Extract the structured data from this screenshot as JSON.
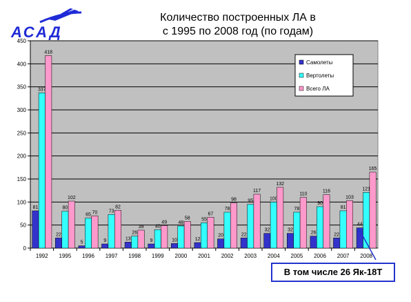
{
  "header": {
    "logo_text": "АСАД",
    "title_line1": "Количество построенных ЛА в",
    "title_line2": "с 1995 по 2008 год (по годам)"
  },
  "callout": {
    "text": "В том числе 26 Як-18Т"
  },
  "colors": {
    "plot_bg": "#c0c0c0",
    "samolety": "#3333cc",
    "vertolety": "#33ffff",
    "vsego": "#ff99cc",
    "logo_blue": "#1f2bd6",
    "callout_border": "#2233cc"
  },
  "chart_data": {
    "type": "bar",
    "title": "Количество построенных ЛА в с 1995 по 2008 год (по годам)",
    "categories": [
      "1992",
      "1995",
      "1996",
      "1997",
      "1998",
      "1999",
      "2000",
      "2001",
      "2002",
      "2003",
      "2004",
      "2005",
      "2006",
      "2007",
      "2008"
    ],
    "series": [
      {
        "name": "Самолеты",
        "values": [
          81,
          22,
          5,
          9,
          13,
          9,
          10,
          12,
          20,
          22,
          32,
          32,
          26,
          22,
          44
        ],
        "labels": [
          "81",
          "22",
          "5",
          "9",
          "13",
          "9",
          "10",
          "12",
          "20",
          "22",
          "32",
          "32",
          "26",
          "22",
          "44"
        ]
      },
      {
        "name": "Вертолеты",
        "values": [
          337,
          80,
          65,
          73,
          26,
          40,
          48,
          55,
          78,
          95,
          100,
          78,
          90,
          81,
          121
        ],
        "labels": [
          "337",
          "80",
          "65",
          "73",
          "26",
          "40",
          "48",
          "55",
          "78",
          "95",
          "100",
          "78",
          "90",
          "81",
          "121"
        ]
      },
      {
        "name": "Всего ЛА",
        "values": [
          418,
          102,
          70,
          82,
          39,
          49,
          58,
          67,
          98,
          117,
          132,
          110,
          116,
          103,
          165
        ],
        "labels": [
          "418",
          "102",
          "70",
          "82",
          "39",
          "49",
          "58",
          "67",
          "98",
          "117",
          "132",
          "110",
          "116",
          "103",
          "165"
        ]
      }
    ],
    "yticks": [
      "0",
      "50",
      "100",
      "150",
      "200",
      "250",
      "300",
      "350",
      "400",
      "450"
    ],
    "ylim": [
      0,
      450
    ],
    "grid": true,
    "legend_position": "top-right"
  }
}
